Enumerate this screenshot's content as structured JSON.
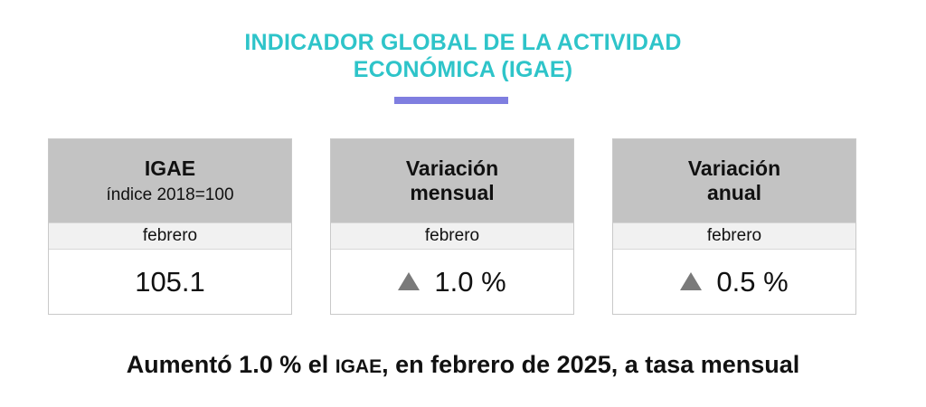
{
  "title": {
    "line1": "INDICADOR GLOBAL DE LA ACTIVIDAD",
    "line2": "ECONÓMICA (IGAE)",
    "color": "#2ec4c9",
    "accent_color": "#7f7ee0"
  },
  "cards": [
    {
      "heading": "IGAE",
      "subheading": "índice 2018=100",
      "period": "febrero",
      "value": "105.1"
    },
    {
      "heading_line1": "Variación",
      "heading_line2": "mensual",
      "period": "febrero",
      "value": "1.0 %",
      "trend_icon": "up-triangle-icon"
    },
    {
      "heading_line1": "Variación",
      "heading_line2": "anual",
      "period": "febrero",
      "value": "0.5 %",
      "trend_icon": "up-triangle-icon"
    }
  ],
  "headline": {
    "part1": "Aumentó 1.0 % el ",
    "acronym": "IGAE",
    "part2": ", en febrero de 2025, a tasa mensual"
  }
}
